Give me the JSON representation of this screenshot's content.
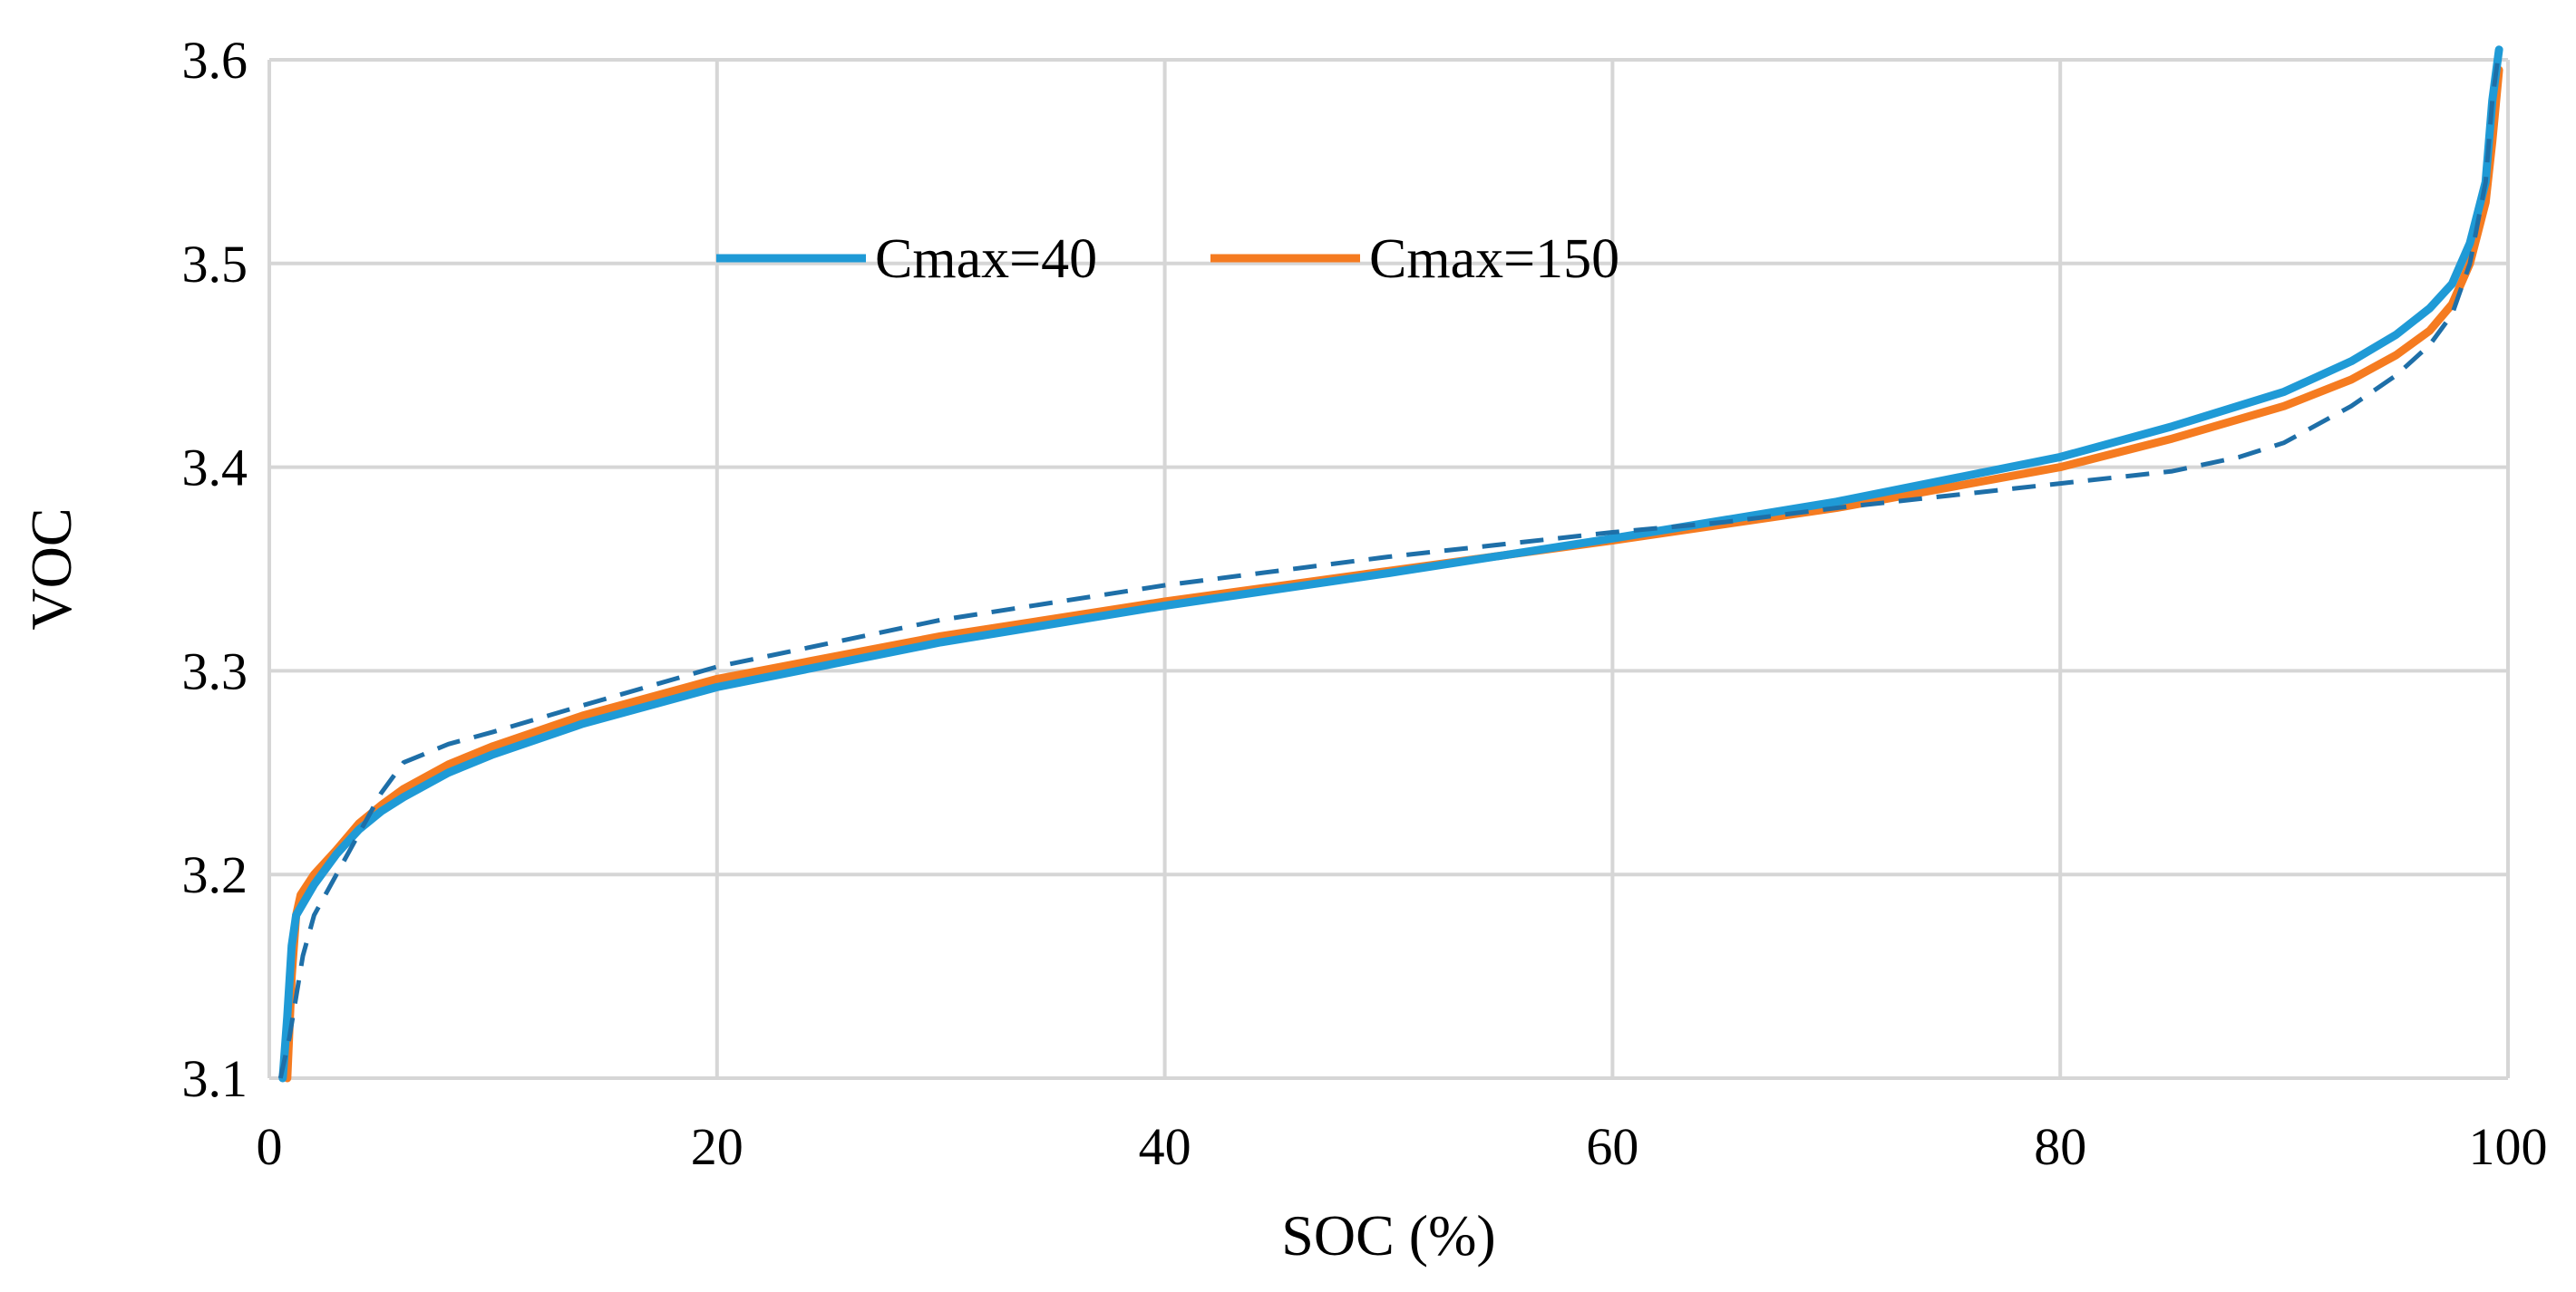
{
  "chart_data": {
    "type": "line",
    "title": "",
    "xlabel": "SOC (%)",
    "ylabel": "VOC",
    "xlim": [
      0,
      100
    ],
    "ylim": [
      3.1,
      3.6
    ],
    "xticks": [
      0,
      20,
      40,
      60,
      80,
      100
    ],
    "yticks": [
      3.1,
      3.2,
      3.3,
      3.4,
      3.5,
      3.6
    ],
    "xtick_labels": [
      "0",
      "20",
      "40",
      "60",
      "80",
      "100"
    ],
    "ytick_labels": [
      "3.1",
      "3.2",
      "3.3",
      "3.4",
      "3.5",
      "3.6"
    ],
    "grid": true,
    "legend_position": "top-center",
    "series": [
      {
        "name": "Cmax=40",
        "color": "#1f9ad6",
        "style": "solid",
        "x": [
          0.6,
          0.8,
          1.0,
          1.2,
          2,
          3,
          4,
          5,
          6,
          8,
          10,
          14,
          20,
          30,
          40,
          50,
          60,
          70,
          80,
          85,
          90,
          93,
          95,
          96.5,
          97.5,
          98.3,
          99,
          99.3,
          99.6
        ],
        "y": [
          3.1,
          3.13,
          3.165,
          3.18,
          3.195,
          3.21,
          3.222,
          3.231,
          3.238,
          3.25,
          3.259,
          3.274,
          3.292,
          3.314,
          3.332,
          3.348,
          3.365,
          3.383,
          3.405,
          3.42,
          3.437,
          3.452,
          3.465,
          3.478,
          3.49,
          3.51,
          3.54,
          3.58,
          3.605
        ]
      },
      {
        "name": "Cmax=150",
        "color": "#f57b20",
        "style": "solid",
        "x": [
          0.8,
          1.0,
          1.2,
          1.4,
          2,
          3,
          4,
          5,
          6,
          8,
          10,
          14,
          20,
          30,
          40,
          50,
          60,
          70,
          80,
          85,
          90,
          93,
          95,
          96.5,
          97.5,
          98.3,
          99,
          99.3,
          99.6
        ],
        "y": [
          3.1,
          3.15,
          3.18,
          3.19,
          3.2,
          3.212,
          3.225,
          3.234,
          3.242,
          3.254,
          3.263,
          3.278,
          3.296,
          3.317,
          3.334,
          3.349,
          3.364,
          3.38,
          3.4,
          3.414,
          3.43,
          3.443,
          3.455,
          3.467,
          3.48,
          3.5,
          3.53,
          3.56,
          3.595
        ]
      },
      {
        "name": "",
        "color": "#1e6fa8",
        "style": "dashed",
        "x": [
          0.5,
          0.9,
          1.5,
          2,
          3,
          4,
          5,
          6,
          8,
          10,
          14,
          20,
          30,
          40,
          50,
          60,
          65,
          70,
          75,
          80,
          85,
          88,
          90,
          93,
          95,
          96.5,
          97.5,
          98.3,
          99,
          99.3,
          99.6
        ],
        "y": [
          3.1,
          3.12,
          3.16,
          3.18,
          3.2,
          3.22,
          3.24,
          3.255,
          3.264,
          3.27,
          3.283,
          3.302,
          3.325,
          3.342,
          3.356,
          3.368,
          3.373,
          3.38,
          3.386,
          3.392,
          3.398,
          3.405,
          3.412,
          3.43,
          3.445,
          3.46,
          3.475,
          3.5,
          3.54,
          3.58,
          3.605
        ]
      }
    ]
  }
}
